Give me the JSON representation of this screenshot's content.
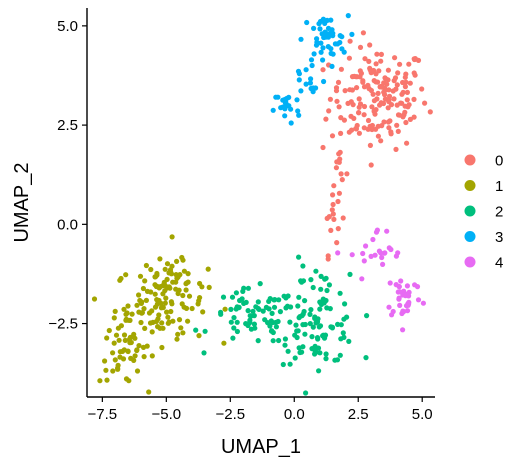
{
  "chart_data": {
    "type": "scatter",
    "title": "",
    "xlabel": "UMAP_1",
    "ylabel": "UMAP_2",
    "xlim": [
      -8.1,
      5.5
    ],
    "ylim": [
      -4.35,
      5.45
    ],
    "x_ticks": [
      -7.5,
      -5.0,
      -2.5,
      0.0,
      2.5,
      5.0
    ],
    "x_tick_labels": [
      "-7.5",
      "-5.0",
      "-2.5",
      "0.0",
      "2.5",
      "5.0"
    ],
    "y_ticks": [
      -2.5,
      0.0,
      2.5,
      5.0
    ],
    "y_tick_labels": [
      "-2.5",
      "0.0",
      "2.5",
      "5.0"
    ],
    "grid": false,
    "legend_position": "right",
    "series": [
      {
        "name": "0",
        "color": "#F8766D",
        "clusters": [
          {
            "cx": 3.3,
            "cy": 3.2,
            "sx": 0.95,
            "sy": 0.65,
            "n": 170
          },
          {
            "cx": 1.75,
            "cy": 1.3,
            "sx": 0.18,
            "sy": 0.55,
            "n": 14
          },
          {
            "cx": 1.45,
            "cy": 0.05,
            "sx": 0.12,
            "sy": 0.4,
            "n": 12
          }
        ]
      },
      {
        "name": "1",
        "color": "#A3A500",
        "clusters": [
          {
            "cx": -5.2,
            "cy": -2.0,
            "sx": 0.9,
            "sy": 0.5,
            "n": 110
          },
          {
            "cx": -6.7,
            "cy": -3.2,
            "sx": 0.45,
            "sy": 0.4,
            "n": 45
          },
          {
            "cx": -4.6,
            "cy": -1.3,
            "sx": 0.4,
            "sy": 0.3,
            "n": 25
          }
        ]
      },
      {
        "name": "2",
        "color": "#00BF7D",
        "clusters": [
          {
            "cx": -1.6,
            "cy": -2.35,
            "sx": 0.85,
            "sy": 0.35,
            "n": 70
          },
          {
            "cx": 0.9,
            "cy": -2.6,
            "sx": 0.8,
            "sy": 0.45,
            "n": 90
          },
          {
            "cx": 0.6,
            "cy": -1.5,
            "sx": 0.5,
            "sy": 0.3,
            "n": 15
          }
        ]
      },
      {
        "name": "3",
        "color": "#00B0F6",
        "clusters": [
          {
            "cx": 1.2,
            "cy": 4.65,
            "sx": 0.45,
            "sy": 0.3,
            "n": 45
          },
          {
            "cx": -0.3,
            "cy": 2.95,
            "sx": 0.25,
            "sy": 0.22,
            "n": 22
          },
          {
            "cx": 0.55,
            "cy": 3.6,
            "sx": 0.35,
            "sy": 0.3,
            "n": 14
          }
        ]
      },
      {
        "name": "4",
        "color": "#E76BF3",
        "clusters": [
          {
            "cx": 4.3,
            "cy": -1.8,
            "sx": 0.35,
            "sy": 0.3,
            "n": 35
          },
          {
            "cx": 3.3,
            "cy": -0.8,
            "sx": 0.55,
            "sy": 0.35,
            "n": 22
          }
        ]
      }
    ]
  }
}
